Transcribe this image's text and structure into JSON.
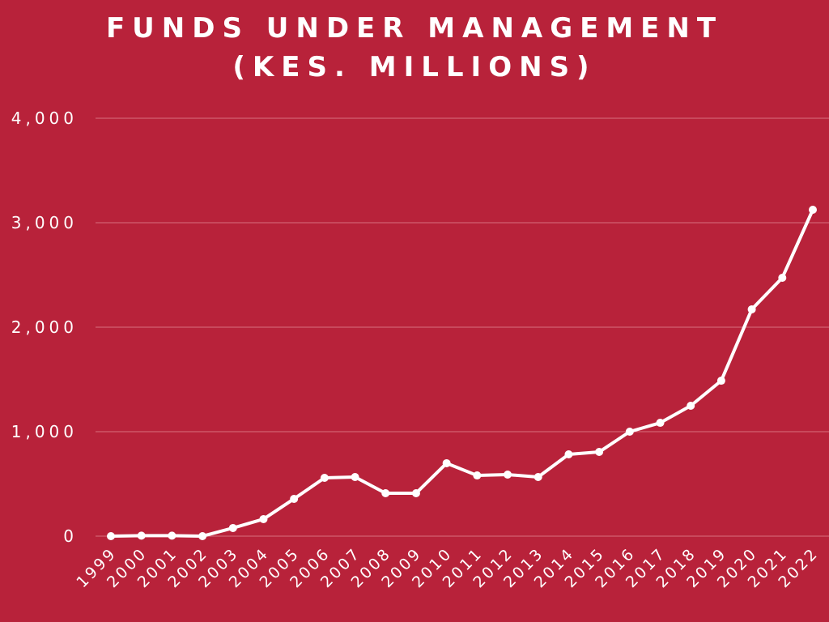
{
  "chart_data": {
    "type": "line",
    "title_lines": [
      "FUNDS UNDER MANAGEMENT",
      "(KES. MILLIONS)"
    ],
    "xlabel": "",
    "ylabel": "",
    "categories": [
      "1999",
      "2000",
      "2001",
      "2002",
      "2003",
      "2004",
      "2005",
      "2006",
      "2007",
      "2008",
      "2009",
      "2010",
      "2011",
      "2012",
      "2013",
      "2014",
      "2015",
      "2016",
      "2017",
      "2018",
      "2019",
      "2020",
      "2021",
      "2022"
    ],
    "series": [
      {
        "name": "Funds Under Management",
        "values": [
          0,
          5,
          5,
          0,
          78,
          163,
          357,
          558,
          566,
          411,
          411,
          698,
          581,
          589,
          566,
          783,
          806,
          1000,
          1085,
          1248,
          1488,
          2171,
          2473,
          3124
        ]
      }
    ],
    "ylim": [
      0,
      4000
    ],
    "yticks": [
      0,
      1000,
      2000,
      3000,
      4000
    ],
    "ytick_labels": [
      "0",
      "1,000",
      "2,000",
      "3,000",
      "4,000"
    ],
    "grid": true,
    "legend": "none",
    "colors": {
      "background": "#b8223a",
      "line": "#ffffff",
      "grid": "#d9707f"
    }
  }
}
